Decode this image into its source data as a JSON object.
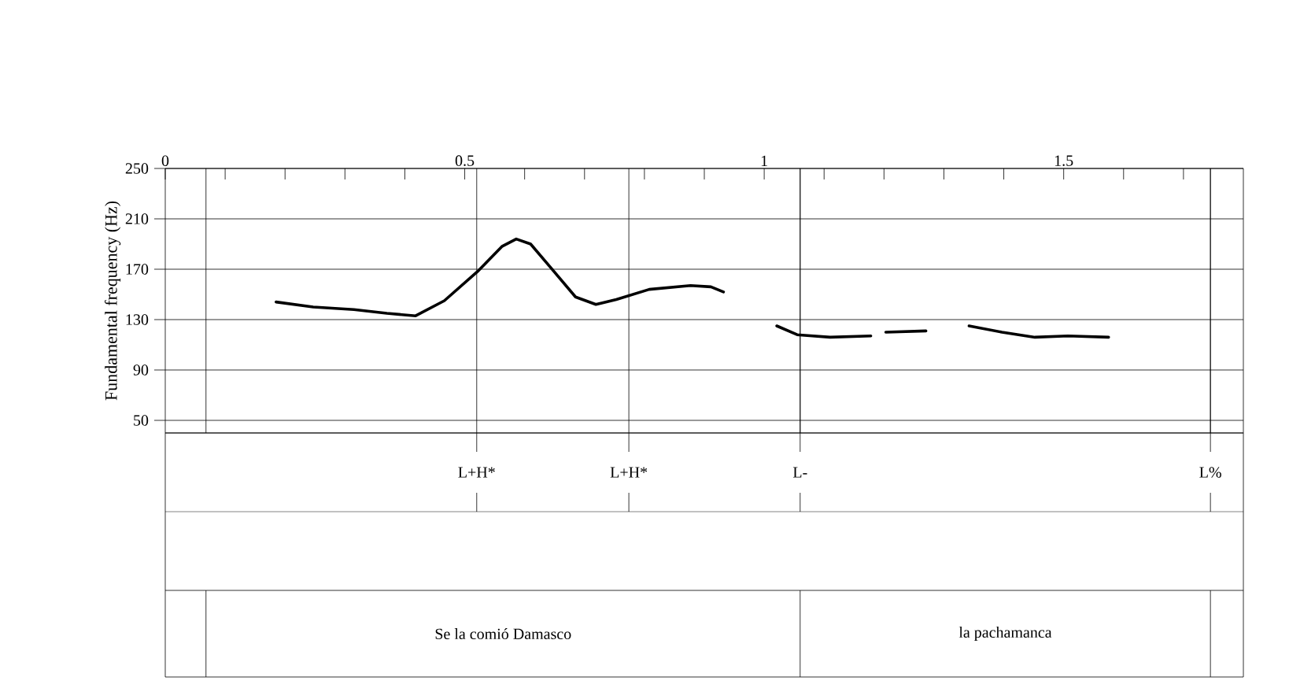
{
  "chart_data": {
    "type": "line",
    "ylabel": "Fundamental frequency (Hz)",
    "xlim": [
      0,
      1.8
    ],
    "ylim": [
      40,
      250
    ],
    "xticks": [
      0,
      {
        "value": 0.1,
        "label": null
      },
      {
        "value": 0.2,
        "label": null
      },
      {
        "value": 0.3,
        "label": null
      },
      {
        "value": 0.4,
        "label": null
      },
      0.5,
      {
        "value": 0.6,
        "label": null
      },
      {
        "value": 0.7,
        "label": null
      },
      {
        "value": 0.8,
        "label": null
      },
      {
        "value": 0.9,
        "label": null
      },
      1,
      {
        "value": 1.1,
        "label": null
      },
      {
        "value": 1.2,
        "label": null
      },
      {
        "value": 1.3,
        "label": null
      },
      {
        "value": 1.4,
        "label": null
      },
      1.5,
      {
        "value": 1.6,
        "label": null
      },
      {
        "value": 1.7,
        "label": null
      }
    ],
    "yticks": [
      50,
      90,
      130,
      170,
      210,
      250
    ],
    "grid": "y",
    "marker": "none",
    "line_style": "solid",
    "series": [
      {
        "color": "#000000",
        "x": [
          0.185,
          0.247,
          0.315,
          0.37,
          0.418,
          0.466,
          0.521,
          0.562,
          0.586,
          0.61,
          0.644,
          0.685,
          0.719,
          0.753,
          0.808,
          0.877,
          0.911,
          0.932,
          0.98,
          1.021,
          1.055,
          1.11,
          1.178,
          1.19,
          1.203,
          1.27,
          1.3,
          1.342,
          1.397,
          1.452,
          1.507,
          1.575
        ],
        "values": [
          144,
          140,
          138,
          135,
          133,
          145,
          168,
          188,
          194,
          190,
          171,
          148,
          142,
          146,
          154,
          157,
          156,
          152,
          null,
          125,
          118,
          116,
          117,
          null,
          120,
          121,
          null,
          125,
          120,
          116,
          117,
          116
        ]
      }
    ],
    "ref_lines": [
      {
        "axis": "x",
        "value": 0.068,
        "label": null,
        "color": "#000000"
      },
      {
        "axis": "x",
        "value": 1.06,
        "label": null,
        "color": "#000000"
      },
      {
        "axis": "x",
        "value": 1.745,
        "label": null,
        "color": "#000000"
      },
      {
        "axis": "x",
        "value": 0.52,
        "label": "L+H*",
        "color": "#000000"
      },
      {
        "axis": "x",
        "value": 0.774,
        "label": "L+H*",
        "color": "#000000"
      },
      {
        "axis": "x",
        "value": 1.06,
        "label": "L-",
        "color": "#000000"
      },
      {
        "axis": "x",
        "value": 1.745,
        "label": "L%",
        "color": "#000000"
      }
    ],
    "annotations": [
      "Se la comió Damasco",
      "la pachamanca"
    ]
  }
}
